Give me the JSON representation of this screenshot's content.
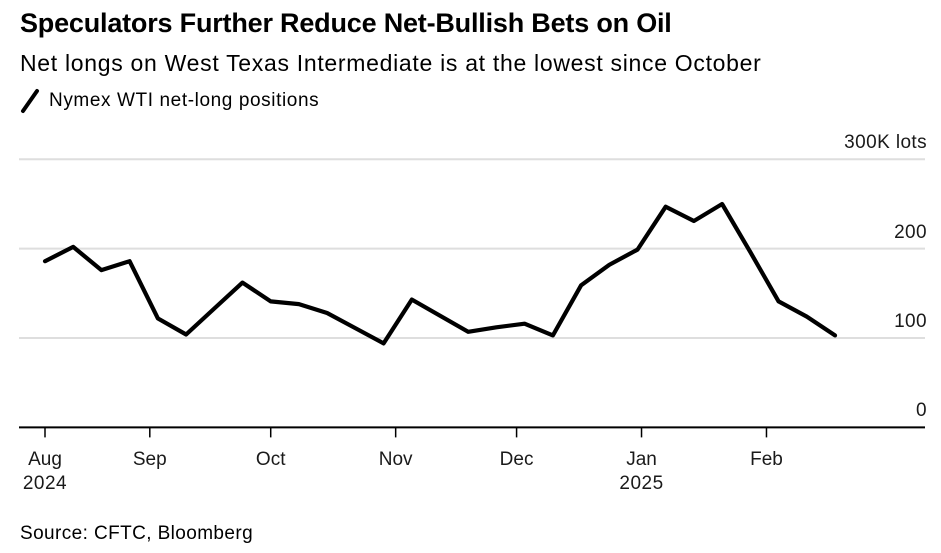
{
  "header": {
    "title": "Speculators Further Reduce Net-Bullish Bets on Oil",
    "subtitle": "Net longs on West Texas Intermediate is at the lowest since October"
  },
  "legend": {
    "label": "Nymex WTI net-long positions",
    "marker": "line-slash-icon",
    "color": "#000000"
  },
  "source": "Source: CFTC, Bloomberg",
  "colors": {
    "line": "#000000",
    "grid": "#dedede",
    "zero_axis": "#000000",
    "text": "#000000",
    "axis_text": "#1a1a1a",
    "background": "#ffffff"
  },
  "chart_data": {
    "type": "line",
    "title": "Speculators Further Reduce Net-Bullish Bets on Oil",
    "subtitle": "Net longs on West Texas Intermediate is at the lowest since October",
    "unit": "K lots",
    "ylim": [
      0,
      330
    ],
    "grid": "horizontal",
    "legend_position": "top-left",
    "y_ticks": [
      {
        "value": 300,
        "label": "300K lots"
      },
      {
        "value": 200,
        "label": "200"
      },
      {
        "value": 100,
        "label": "100"
      },
      {
        "value": 0,
        "label": "0"
      }
    ],
    "x_ticks": [
      {
        "date": "2024-08-06",
        "label": "Aug",
        "year_label": "2024"
      },
      {
        "date": "2024-09-01",
        "label": "Sep"
      },
      {
        "date": "2024-10-01",
        "label": "Oct"
      },
      {
        "date": "2024-11-01",
        "label": "Nov"
      },
      {
        "date": "2024-12-01",
        "label": "Dec"
      },
      {
        "date": "2025-01-01",
        "label": "Jan",
        "year_label": "2025"
      },
      {
        "date": "2025-02-01",
        "label": "Feb"
      }
    ],
    "series": [
      {
        "name": "Nymex WTI net-long positions",
        "color": "#000000",
        "x": [
          "2024-08-06",
          "2024-08-13",
          "2024-08-20",
          "2024-08-27",
          "2024-09-03",
          "2024-09-10",
          "2024-09-17",
          "2024-09-24",
          "2024-10-01",
          "2024-10-08",
          "2024-10-15",
          "2024-10-22",
          "2024-10-29",
          "2024-11-05",
          "2024-11-12",
          "2024-11-19",
          "2024-11-26",
          "2024-12-03",
          "2024-12-10",
          "2024-12-17",
          "2024-12-24",
          "2024-12-31",
          "2025-01-07",
          "2025-01-14",
          "2025-01-21",
          "2025-01-28",
          "2025-02-04",
          "2025-02-11",
          "2025-02-18"
        ],
        "values": [
          186,
          202,
          176,
          186,
          122,
          104,
          133,
          162,
          141,
          138,
          128,
          111,
          94,
          143,
          125,
          107,
          112,
          116,
          103,
          159,
          182,
          199,
          247,
          231,
          250,
          196,
          141,
          124,
          103
        ]
      }
    ]
  }
}
